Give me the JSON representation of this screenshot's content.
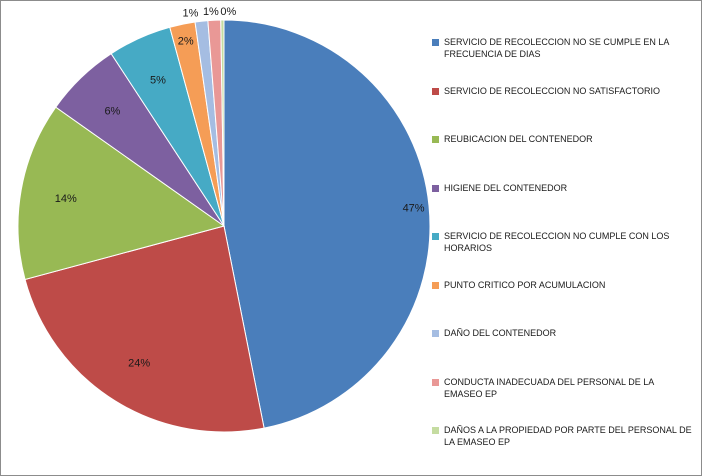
{
  "chart_data": {
    "type": "pie",
    "title": "",
    "categories": [
      "SERVICIO DE RECOLECCION NO SE CUMPLE EN LA FRECUENCIA DE DIAS",
      "SERVICIO DE RECOLECCION NO SATISFACTORIO",
      "REUBICACION DEL CONTENEDOR",
      "HIGIENE DEL CONTENEDOR",
      "SERVICIO DE RECOLECCION NO CUMPLE CON LOS HORARIOS",
      "PUNTO CRITICO POR ACUMULACION",
      "DAÑO DEL CONTENEDOR",
      "CONDUCTA INADECUADA DEL PERSONAL DE LA EMASEO EP",
      "DAÑOS A LA PROPIEDAD POR PARTE DEL PERSONAL DE LA EMASEO EP"
    ],
    "values": [
      47,
      24,
      14,
      6,
      5,
      2,
      1,
      1,
      0
    ],
    "labels": [
      "47%",
      "24%",
      "14%",
      "6%",
      "5%",
      "2%",
      "1%",
      "1%",
      "0%"
    ],
    "colors": [
      "#4a7ebb",
      "#be4b48",
      "#98b954",
      "#7d60a0",
      "#46aac5",
      "#f59d56",
      "#a5bde2",
      "#e99896",
      "#c5dca1"
    ],
    "legend_position": "right"
  }
}
